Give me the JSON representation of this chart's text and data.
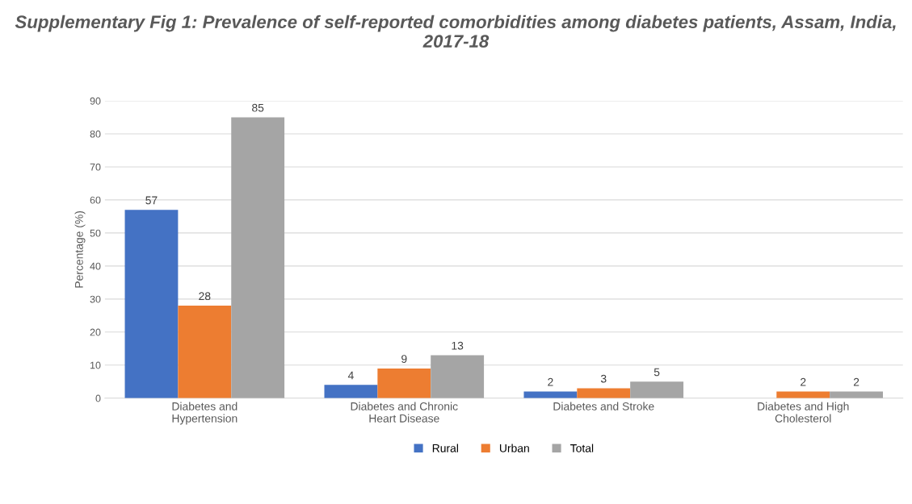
{
  "chart_data": {
    "type": "bar",
    "title": "Supplementary Fig 1: Prevalence of self-reported comorbidities among diabetes patients, Assam, India, 2017-18",
    "ylabel": "Percentage (%)",
    "categories": [
      "Diabetes and\nHypertension",
      "Diabetes and Chronic\nHeart Disease",
      "Diabetes and Stroke",
      "Diabetes and High\nCholesterol"
    ],
    "series": [
      {
        "name": "Rural",
        "color": "#4472c4",
        "values": [
          57,
          4,
          2,
          null
        ]
      },
      {
        "name": "Urban",
        "color": "#ed7d31",
        "values": [
          28,
          9,
          3,
          2
        ]
      },
      {
        "name": "Total",
        "color": "#a5a5a5",
        "values": [
          85,
          13,
          5,
          2
        ]
      }
    ],
    "ylim": [
      0,
      90
    ],
    "yticks": [
      0,
      10,
      20,
      30,
      40,
      50,
      60,
      70,
      80,
      90
    ],
    "grid": "y",
    "legend": "bottom",
    "data_labels": true
  }
}
